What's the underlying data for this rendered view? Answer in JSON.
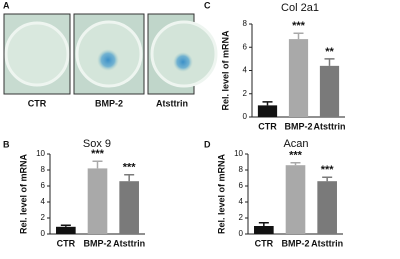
{
  "panel_a": {
    "letter": "A",
    "labels": [
      "CTR",
      "BMP-2",
      "Atsttrin"
    ]
  },
  "chart_data": [
    {
      "type": "bar",
      "panel": "C",
      "title": "Col 2a1",
      "y_label": "Rel. level of mRNA",
      "categories": [
        "CTR",
        "BMP-2",
        "Atsttrin"
      ],
      "values": [
        1.0,
        6.7,
        4.4
      ],
      "errors": [
        0.3,
        0.5,
        0.6
      ],
      "colors": [
        "#111111",
        "#a9a9a9",
        "#7a7a7a"
      ],
      "annotations": [
        null,
        "***",
        "**"
      ],
      "ylim": [
        0,
        8
      ],
      "yticks": [
        0,
        2,
        4,
        6,
        8
      ]
    },
    {
      "type": "bar",
      "panel": "B",
      "title": "Sox 9",
      "y_label": "Rel. level of mRNA",
      "categories": [
        "CTR",
        "BMP-2",
        "Atsttrin"
      ],
      "values": [
        0.9,
        8.2,
        6.6
      ],
      "errors": [
        0.2,
        0.9,
        0.8
      ],
      "colors": [
        "#111111",
        "#a9a9a9",
        "#7a7a7a"
      ],
      "annotations": [
        null,
        "***",
        "***"
      ],
      "ylim": [
        0,
        10
      ],
      "yticks": [
        0,
        2,
        4,
        6,
        8,
        10
      ]
    },
    {
      "type": "bar",
      "panel": "D",
      "title": "Acan",
      "y_label": "Rel. level of mRNA",
      "categories": [
        "CTR",
        "BMP-2",
        "Atsttrin"
      ],
      "values": [
        1.0,
        8.6,
        6.6
      ],
      "errors": [
        0.4,
        0.3,
        0.5
      ],
      "colors": [
        "#111111",
        "#a9a9a9",
        "#7a7a7a"
      ],
      "annotations": [
        null,
        "***",
        "***"
      ],
      "ylim": [
        0,
        10
      ],
      "yticks": [
        0,
        2,
        4,
        6,
        8,
        10
      ]
    }
  ]
}
